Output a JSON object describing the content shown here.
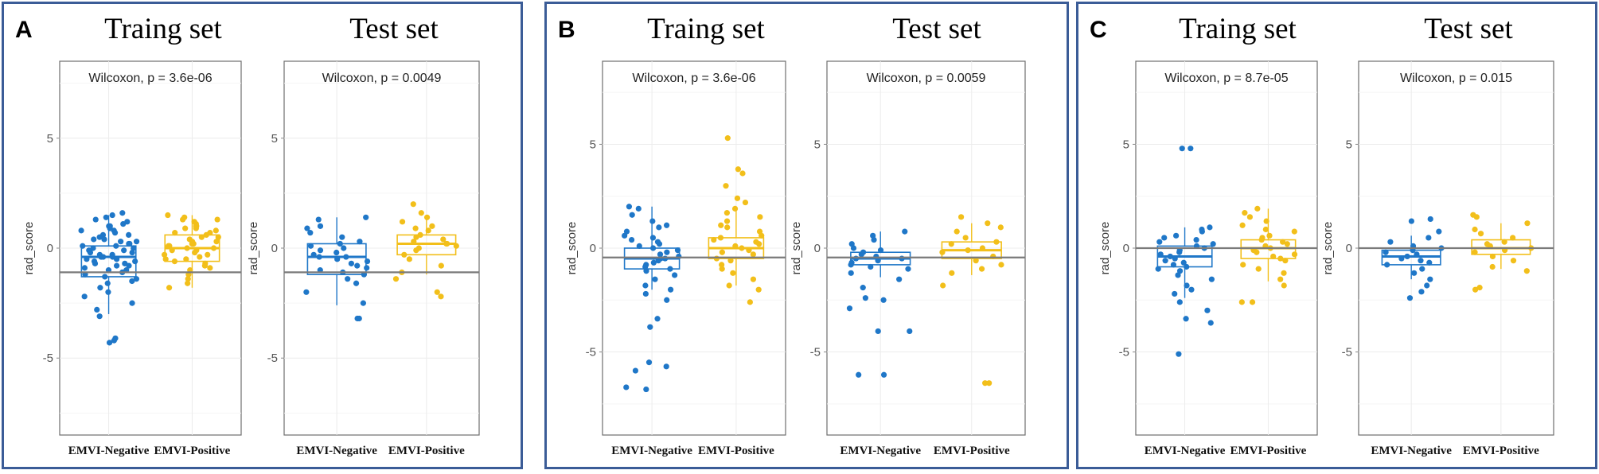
{
  "figure": {
    "colors": {
      "negative": "#1f77c8",
      "positive": "#f2bf1a",
      "frame": "#3b5c97"
    }
  },
  "chart_data": [
    {
      "panel": "A",
      "set": "Traing set",
      "type": "box+jitter",
      "ylabel": "rad_score",
      "ylim": [
        -8.5,
        8.5
      ],
      "yticks": [
        -5,
        0,
        5
      ],
      "annotation": "Wilcoxon, p = 3.6e-06",
      "hline": -1.1,
      "categories": [
        "EMVI-Negative",
        "EMVI-Positive"
      ],
      "series": [
        {
          "name": "EMVI-Negative",
          "box": {
            "q1": -1.3,
            "median": -0.4,
            "q3": 0.1,
            "whisker_low": -3.0,
            "whisker_high": 1.5
          },
          "points": [
            1.6,
            1.5,
            1.4,
            1.3,
            1.2,
            1.1,
            1.0,
            1.0,
            0.9,
            0.8,
            0.8,
            0.7,
            0.6,
            0.6,
            0.5,
            0.4,
            0.4,
            0.3,
            0.3,
            0.2,
            0.2,
            0.1,
            0.1,
            0.0,
            0.0,
            -0.1,
            -0.1,
            -0.2,
            -0.2,
            -0.3,
            -0.3,
            -0.4,
            -0.4,
            -0.4,
            -0.5,
            -0.5,
            -0.6,
            -0.6,
            -0.7,
            -0.7,
            -0.8,
            -0.8,
            -0.9,
            -1.0,
            -1.0,
            -1.1,
            -1.2,
            -1.3,
            -1.4,
            -1.5,
            -1.6,
            -1.8,
            -2.0,
            -2.2,
            -2.5,
            -2.8,
            -3.1,
            -4.1,
            -4.2,
            -4.3
          ]
        },
        {
          "name": "EMVI-Positive",
          "box": {
            "q1": -0.6,
            "median": 0.0,
            "q3": 0.6,
            "whisker_low": -1.8,
            "whisker_high": 1.5
          },
          "points": [
            1.5,
            1.4,
            1.3,
            1.3,
            1.2,
            1.1,
            1.0,
            1.0,
            0.9,
            0.9,
            0.8,
            0.7,
            0.7,
            0.6,
            0.5,
            0.5,
            0.4,
            0.3,
            0.3,
            0.2,
            0.2,
            0.1,
            0.1,
            0.0,
            0.0,
            -0.1,
            -0.1,
            -0.2,
            -0.3,
            -0.3,
            -0.4,
            -0.5,
            -0.5,
            -0.6,
            -0.7,
            -0.8,
            -0.9,
            -1.0,
            -1.2,
            -1.4,
            -1.6,
            -1.8
          ]
        }
      ]
    },
    {
      "panel": "A",
      "set": "Test set",
      "type": "box+jitter",
      "ylabel": "rad_score",
      "ylim": [
        -8.5,
        8.5
      ],
      "yticks": [
        -5,
        0,
        5
      ],
      "annotation": "Wilcoxon, p = 0.0049",
      "hline": -1.1,
      "categories": [
        "EMVI-Negative",
        "EMVI-Positive"
      ],
      "series": [
        {
          "name": "EMVI-Negative",
          "box": {
            "q1": -1.2,
            "median": -0.4,
            "q3": 0.2,
            "whisker_low": -2.6,
            "whisker_high": 1.4
          },
          "points": [
            1.4,
            1.3,
            1.0,
            0.9,
            0.7,
            0.5,
            0.3,
            0.2,
            0.1,
            0.0,
            -0.1,
            -0.2,
            -0.3,
            -0.4,
            -0.4,
            -0.5,
            -0.6,
            -0.7,
            -0.8,
            -0.9,
            -1.0,
            -1.1,
            -1.2,
            -1.4,
            -1.6,
            -2.0,
            -2.5,
            -3.2,
            -3.2
          ]
        },
        {
          "name": "EMVI-Positive",
          "box": {
            "q1": -0.3,
            "median": 0.2,
            "q3": 0.6,
            "whisker_low": -1.2,
            "whisker_high": 1.5
          },
          "points": [
            2.0,
            1.6,
            1.4,
            1.2,
            1.0,
            0.9,
            0.8,
            0.6,
            0.5,
            0.4,
            0.3,
            0.2,
            0.2,
            0.1,
            0.0,
            -0.1,
            -0.3,
            -0.5,
            -0.8,
            -1.1,
            -1.4,
            -2.0,
            -2.2
          ]
        }
      ]
    },
    {
      "panel": "B",
      "set": "Traing set",
      "type": "box+jitter",
      "ylabel": "rad_score",
      "ylim": [
        -9,
        9
      ],
      "yticks": [
        -5,
        0,
        5
      ],
      "annotation": "Wilcoxon, p = 3.6e-06",
      "hline": -0.45,
      "categories": [
        "EMVI-Negative",
        "EMVI-Positive"
      ],
      "series": [
        {
          "name": "EMVI-Negative",
          "box": {
            "q1": -1.0,
            "median": -0.5,
            "q3": 0.0,
            "whisker_low": -2.0,
            "whisker_high": 2.0
          },
          "points": [
            2.0,
            1.9,
            1.6,
            1.3,
            1.1,
            1.0,
            0.8,
            0.6,
            0.5,
            0.4,
            0.3,
            0.2,
            0.1,
            0.0,
            -0.1,
            -0.2,
            -0.3,
            -0.4,
            -0.5,
            -0.5,
            -0.6,
            -0.7,
            -0.8,
            -0.9,
            -1.0,
            -1.1,
            -1.3,
            -1.5,
            -1.8,
            -2.0,
            -2.2,
            -2.5,
            -3.4,
            -3.8,
            -5.5,
            -5.7,
            -5.9,
            -6.7,
            -6.8
          ]
        },
        {
          "name": "EMVI-Positive",
          "box": {
            "q1": -0.5,
            "median": 0.0,
            "q3": 0.5,
            "whisker_low": -1.8,
            "whisker_high": 2.0
          },
          "points": [
            5.3,
            3.8,
            3.6,
            3.0,
            2.4,
            2.2,
            1.9,
            1.7,
            1.5,
            1.3,
            1.1,
            1.0,
            0.8,
            0.6,
            0.5,
            0.4,
            0.3,
            0.2,
            0.1,
            0.0,
            -0.1,
            -0.2,
            -0.3,
            -0.5,
            -0.6,
            -0.8,
            -1.0,
            -1.2,
            -1.5,
            -1.8,
            -2.0,
            -2.6
          ]
        }
      ]
    },
    {
      "panel": "B",
      "set": "Test set",
      "type": "box+jitter",
      "ylabel": "rad_score",
      "ylim": [
        -9,
        9
      ],
      "yticks": [
        -5,
        0,
        5
      ],
      "annotation": "Wilcoxon, p = 0.0059",
      "hline": -0.45,
      "categories": [
        "EMVI-Negative",
        "EMVI-Positive"
      ],
      "series": [
        {
          "name": "EMVI-Negative",
          "box": {
            "q1": -0.8,
            "median": -0.5,
            "q3": -0.2,
            "whisker_low": -1.4,
            "whisker_high": 0.8
          },
          "points": [
            0.8,
            0.6,
            0.4,
            0.2,
            0.0,
            -0.1,
            -0.2,
            -0.3,
            -0.4,
            -0.5,
            -0.5,
            -0.6,
            -0.7,
            -0.8,
            -0.9,
            -1.0,
            -1.2,
            -1.5,
            -1.9,
            -2.4,
            -2.5,
            -2.9,
            -4.0,
            -4.0,
            -6.1,
            -6.1
          ]
        },
        {
          "name": "EMVI-Positive",
          "box": {
            "q1": -0.5,
            "median": -0.1,
            "q3": 0.3,
            "whisker_low": -1.3,
            "whisker_high": 1.2
          },
          "points": [
            1.5,
            1.2,
            1.0,
            0.8,
            0.5,
            0.3,
            0.2,
            0.0,
            -0.1,
            -0.2,
            -0.4,
            -0.6,
            -0.8,
            -1.0,
            -1.2,
            -1.8,
            -6.5,
            -6.5
          ]
        }
      ]
    },
    {
      "panel": "C",
      "set": "Traing set",
      "type": "box+jitter",
      "ylabel": "rad_score",
      "ylim": [
        -9,
        9
      ],
      "yticks": [
        -5,
        0,
        5
      ],
      "annotation": "Wilcoxon, p = 8.7e-05",
      "hline": 0.0,
      "categories": [
        "EMVI-Negative",
        "EMVI-Positive"
      ],
      "series": [
        {
          "name": "EMVI-Negative",
          "box": {
            "q1": -0.9,
            "median": -0.4,
            "q3": 0.1,
            "whisker_low": -2.4,
            "whisker_high": 1.0
          },
          "points": [
            4.8,
            4.8,
            1.0,
            0.9,
            0.8,
            0.6,
            0.5,
            0.4,
            0.3,
            0.2,
            0.1,
            0.0,
            -0.1,
            -0.2,
            -0.3,
            -0.4,
            -0.5,
            -0.6,
            -0.7,
            -0.8,
            -0.9,
            -1.0,
            -1.1,
            -1.3,
            -1.5,
            -1.8,
            -2.0,
            -2.2,
            -2.6,
            -3.0,
            -3.4,
            -3.6,
            -5.1
          ]
        },
        {
          "name": "EMVI-Positive",
          "box": {
            "q1": -0.5,
            "median": 0.0,
            "q3": 0.4,
            "whisker_low": -1.6,
            "whisker_high": 1.9
          },
          "points": [
            1.9,
            1.7,
            1.5,
            1.3,
            1.1,
            0.9,
            0.8,
            0.6,
            0.5,
            0.4,
            0.3,
            0.2,
            0.1,
            0.0,
            -0.1,
            -0.2,
            -0.3,
            -0.4,
            -0.5,
            -0.6,
            -0.8,
            -1.0,
            -1.2,
            -1.5,
            -1.8,
            -2.6,
            -2.6
          ]
        }
      ]
    },
    {
      "panel": "C",
      "set": "Test set",
      "type": "box+jitter",
      "ylabel": "rad_score",
      "ylim": [
        -9,
        9
      ],
      "yticks": [
        -5,
        0,
        5
      ],
      "annotation": "Wilcoxon, p = 0.015",
      "hline": 0.0,
      "categories": [
        "EMVI-Negative",
        "EMVI-Positive"
      ],
      "series": [
        {
          "name": "EMVI-Negative",
          "box": {
            "q1": -0.8,
            "median": -0.4,
            "q3": -0.1,
            "whisker_low": -1.5,
            "whisker_high": 0.6
          },
          "points": [
            1.4,
            1.3,
            0.8,
            0.5,
            0.3,
            0.1,
            0.0,
            -0.1,
            -0.2,
            -0.3,
            -0.4,
            -0.5,
            -0.6,
            -0.7,
            -0.8,
            -1.0,
            -1.2,
            -1.5,
            -1.8,
            -2.1,
            -2.4
          ]
        },
        {
          "name": "EMVI-Positive",
          "box": {
            "q1": -0.3,
            "median": 0.0,
            "q3": 0.4,
            "whisker_low": -1.0,
            "whisker_high": 1.2
          },
          "points": [
            1.6,
            1.5,
            1.2,
            0.9,
            0.7,
            0.5,
            0.3,
            0.2,
            0.1,
            0.0,
            -0.1,
            -0.2,
            -0.4,
            -0.6,
            -0.9,
            -1.1,
            -1.9,
            -2.0
          ]
        }
      ]
    }
  ],
  "panels": [
    {
      "letter": "A",
      "train_title": "Traing set",
      "test_title": "Test set"
    },
    {
      "letter": "B",
      "train_title": "Traing set",
      "test_title": "Test set"
    },
    {
      "letter": "C",
      "train_title": "Traing set",
      "test_title": "Test set"
    }
  ]
}
